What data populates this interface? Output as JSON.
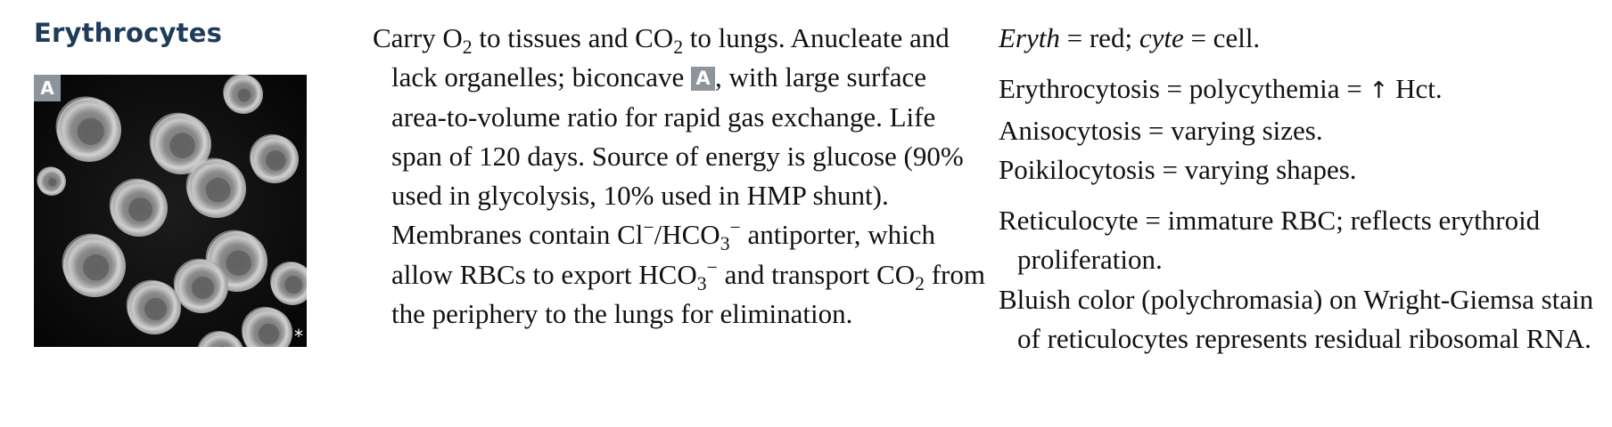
{
  "section": {
    "title": "Erythrocytes"
  },
  "image": {
    "panel_label": "A",
    "corner_mark": "*"
  },
  "description": {
    "seg01": "Carry O",
    "sub_2a": "2",
    "seg02": " to tissues and CO",
    "sub_2b": "2",
    "seg03": " to lungs. Anucleate and lack organelles; biconcave ",
    "inline_label": "A",
    "seg04": ", with large surface area-to-volume ratio for rapid gas exchange. Life span of 120 days. Source of energy is glucose (90% used in glycolysis, 10% used in HMP shunt). Membranes contain Cl",
    "sup_minus_a": "−",
    "seg05": "/HCO",
    "sub_3a": "3",
    "sup_minus_b": "−",
    "seg06": " antiporter, which allow RBCs to export HCO",
    "sub_3b": "3",
    "sup_minus_c": "−",
    "seg07": " and transport CO",
    "sub_2c": "2",
    "seg08": " from the periphery to the lungs for elimination."
  },
  "notes": {
    "etym_eryth": "Eryth",
    "etym_eq1": " = red; ",
    "etym_cyte": "cyte",
    "etym_eq2": " = cell.",
    "erythrocytosis_text": "Erythrocytosis = polycythemia = ",
    "arrow": "↑",
    "erythrocytosis_tail": " Hct.",
    "anisocytosis": "Anisocytosis = varying sizes.",
    "poikilocytosis": "Poikilocytosis = varying shapes.",
    "reticulocyte": "Reticulocyte = immature RBC; reflects erythroid proliferation.",
    "bluish": "Bluish color (polychromasia) on Wright-Giemsa stain of reticulocytes represents residual ribosomal RNA."
  }
}
